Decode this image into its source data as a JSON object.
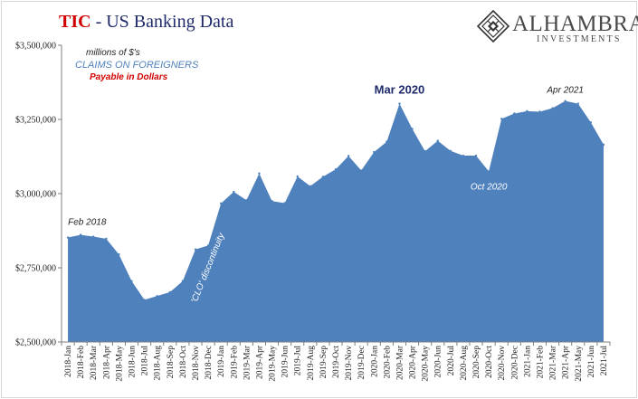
{
  "header": {
    "title_tic": "TIC",
    "title_rest": "- US Banking Data"
  },
  "notes": {
    "units": "millions of $'s",
    "series_label": "CLAIMS  ON FOREIGNERS",
    "subseries_label": "Payable  in Dollars"
  },
  "brand": {
    "name": "ALHAMBRA",
    "subtitle": "INVESTMENTS",
    "logo_icon": "diamond-lattice-icon"
  },
  "colors": {
    "area": "#4f81bd",
    "title_red": "#d10000",
    "title_navy": "#1f2a6b",
    "series_label": "#4f81bd"
  },
  "chart_data": {
    "type": "area",
    "grid": false,
    "legend": "none",
    "ylim": [
      2500000,
      3500000
    ],
    "yticks": [
      2500000,
      2750000,
      3000000,
      3250000,
      3500000
    ],
    "ytick_labels": [
      "$2,500,000",
      "$2,750,000",
      "$3,000,000",
      "$3,250,000",
      "$3,500,000"
    ],
    "categories": [
      "2018-Jan",
      "2018-Feb",
      "2018-Mar",
      "2018-Apr",
      "2018-May",
      "2018-Jun",
      "2018-Jul",
      "2018-Aug",
      "2018-Sep",
      "2018-Oct",
      "2018-Nov",
      "2018-Dec",
      "2019-Jan",
      "2019-Feb",
      "2019-Mar",
      "2019-Apr",
      "2019-May",
      "2019-Jun",
      "2019-Jul",
      "2019-Aug",
      "2019-Sep",
      "2019-Oct",
      "2019-Nov",
      "2019-Dec",
      "2020-Jan",
      "2020-Feb",
      "2020-Mar",
      "2020-Apr",
      "2020-May",
      "2020-Jun",
      "2020-Jul",
      "2020-Aug",
      "2020-Sep",
      "2020-Oct",
      "2020-Nov",
      "2020-Dec",
      "2021-Jan",
      "2021-Feb",
      "2021-Mar",
      "2021-Apr",
      "2021-May",
      "2021-Jun",
      "2021-Jul"
    ],
    "values": [
      2852000,
      2861000,
      2855000,
      2848000,
      2795000,
      2705000,
      2642000,
      2655000,
      2668000,
      2705000,
      2812000,
      2825000,
      2967000,
      3006000,
      2978000,
      3068000,
      2975000,
      2968000,
      3058000,
      3025000,
      3057000,
      3082000,
      3127000,
      3078000,
      3140000,
      3175000,
      3303000,
      3218000,
      3143000,
      3178000,
      3144000,
      3128000,
      3128000,
      3075000,
      3252000,
      3270000,
      3278000,
      3276000,
      3288000,
      3312000,
      3303000,
      3240000,
      3165000
    ],
    "annotations": [
      {
        "text": "Feb 2018",
        "index": 1,
        "value": 2861000
      },
      {
        "text": "Mar 2020",
        "index": 26,
        "value": 3303000
      },
      {
        "text": "Oct 2020",
        "index": 33,
        "value": 3075000
      },
      {
        "text": "Apr 2021",
        "index": 39,
        "value": 3312000
      },
      {
        "text": "'CLO' discontinuity",
        "index": 11,
        "value": 2825000
      }
    ]
  }
}
